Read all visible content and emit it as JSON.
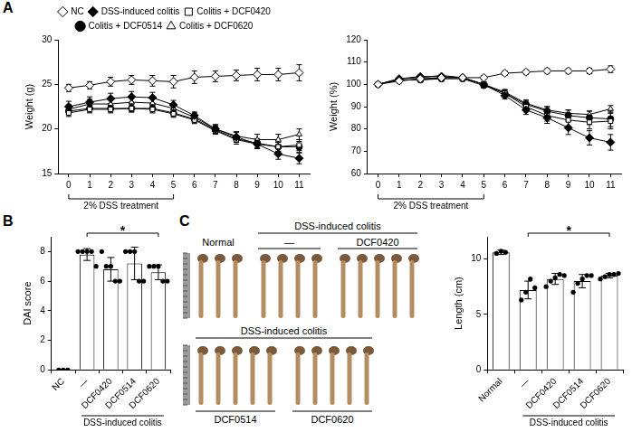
{
  "chart_data": [
    {
      "type": "line",
      "panel": "A",
      "y_label": "Weight (g)",
      "x": [
        0,
        1,
        2,
        3,
        4,
        5,
        6,
        7,
        8,
        9,
        10,
        11
      ],
      "xlim": [
        -0.5,
        11.5
      ],
      "xticks": [
        0,
        1,
        2,
        3,
        4,
        5,
        6,
        7,
        8,
        9,
        10,
        11
      ],
      "ylim": [
        15,
        30
      ],
      "yticks": [
        15,
        20,
        25,
        30
      ],
      "grid": false,
      "legend": "top",
      "annotations": [
        {
          "text": "2% DSS treatment",
          "x_range": [
            0,
            5
          ]
        }
      ],
      "series": [
        {
          "name": "NC",
          "color": "#000000",
          "marker": "diamond-open",
          "line_style": "solid",
          "values": [
            24.6,
            24.9,
            25.3,
            25.5,
            25.4,
            25.3,
            25.8,
            25.9,
            26.0,
            26.1,
            26.1,
            26.3
          ],
          "errors": [
            0.4,
            0.4,
            0.5,
            0.5,
            0.6,
            0.7,
            0.7,
            0.6,
            0.6,
            0.7,
            0.7,
            0.9
          ]
        },
        {
          "name": "DSS-induced colitis",
          "color": "#000000",
          "marker": "diamond",
          "line_style": "solid",
          "values": [
            22.5,
            23.0,
            23.4,
            23.6,
            23.5,
            22.7,
            21.5,
            20.0,
            19.1,
            18.3,
            17.2,
            16.7
          ],
          "errors": [
            0.6,
            0.6,
            0.6,
            0.6,
            0.6,
            0.5,
            0.4,
            0.4,
            0.5,
            0.5,
            0.6,
            0.6
          ]
        },
        {
          "name": "Colitis + DCF0420",
          "color": "#000000",
          "marker": "square-open",
          "line_style": "solid",
          "values": [
            21.8,
            22.2,
            22.2,
            22.3,
            22.2,
            21.7,
            21.0,
            19.8,
            18.8,
            18.3,
            18.0,
            18.2
          ],
          "errors": [
            0.4,
            0.4,
            0.4,
            0.4,
            0.4,
            0.4,
            0.4,
            0.4,
            0.5,
            0.5,
            0.5,
            0.6
          ]
        },
        {
          "name": "Colitis + DCF0514",
          "color": "#000000",
          "marker": "circle",
          "line_style": "solid",
          "values": [
            22.0,
            22.3,
            22.3,
            22.3,
            22.3,
            21.8,
            21.1,
            19.9,
            18.9,
            18.4,
            18.0,
            18.0
          ],
          "errors": [
            0.4,
            0.4,
            0.4,
            0.4,
            0.4,
            0.4,
            0.4,
            0.4,
            0.4,
            0.5,
            0.5,
            0.6
          ]
        },
        {
          "name": "Colitis + DCF0620",
          "color": "#000000",
          "marker": "triangle-open",
          "line_style": "solid",
          "values": [
            22.2,
            22.8,
            22.8,
            23.0,
            22.9,
            22.3,
            21.3,
            20.0,
            19.2,
            18.8,
            18.8,
            19.4
          ],
          "errors": [
            0.5,
            0.5,
            0.5,
            0.5,
            0.5,
            0.5,
            0.5,
            0.5,
            0.5,
            0.6,
            0.6,
            0.6
          ]
        }
      ]
    },
    {
      "type": "line",
      "y_label": "Weight (%)",
      "x": [
        0,
        1,
        2,
        3,
        4,
        5,
        6,
        7,
        8,
        9,
        10,
        11
      ],
      "xlim": [
        -0.5,
        11.5
      ],
      "xticks": [
        0,
        1,
        2,
        3,
        4,
        5,
        6,
        7,
        8,
        9,
        10,
        11
      ],
      "ylim": [
        60,
        120
      ],
      "yticks": [
        60,
        70,
        80,
        90,
        100,
        110,
        120
      ],
      "grid": false,
      "annotations": [
        {
          "text": "2% DSS treatment",
          "x_range": [
            0,
            5
          ]
        }
      ],
      "series": [
        {
          "color": "#000000",
          "marker": "diamond-open",
          "line_style": "solid",
          "values": [
            100,
            101.5,
            102.5,
            103,
            103,
            103,
            105,
            105.5,
            106,
            106,
            106,
            106.8
          ],
          "errors": [
            0,
            1,
            1,
            1,
            1,
            1,
            1,
            1,
            1,
            1,
            1.2,
            1.5
          ]
        },
        {
          "color": "#000000",
          "marker": "diamond",
          "line_style": "solid",
          "values": [
            100,
            102.5,
            103.5,
            103.5,
            103,
            100,
            95,
            88.5,
            85,
            80.5,
            76,
            74
          ],
          "errors": [
            0,
            0.5,
            0.5,
            0.5,
            0.8,
            1,
            1.5,
            2,
            2.5,
            3,
            3.2,
            3.5
          ]
        },
        {
          "color": "#000000",
          "marker": "square-open",
          "line_style": "solid",
          "values": [
            100,
            102,
            102,
            103,
            103,
            100,
            96,
            90,
            86,
            84,
            83,
            83.5
          ],
          "errors": [
            0,
            0.5,
            0.5,
            0.5,
            0.5,
            1,
            1.5,
            2,
            2.5,
            3,
            3,
            3.5
          ]
        },
        {
          "color": "#000000",
          "marker": "circle",
          "line_style": "solid",
          "values": [
            100,
            102,
            102,
            102.5,
            102.5,
            99.5,
            96,
            91,
            88,
            86,
            85,
            84.5
          ],
          "errors": [
            0,
            0.5,
            0.5,
            0.5,
            0.5,
            1,
            1.5,
            1.5,
            2,
            2.5,
            3,
            3.5
          ]
        },
        {
          "color": "#000000",
          "marker": "triangle-open",
          "line_style": "solid",
          "values": [
            100,
            102.5,
            103,
            104,
            103,
            100,
            96.5,
            91.5,
            88.5,
            87,
            86.5,
            89
          ],
          "errors": [
            0,
            0.5,
            0.5,
            0.5,
            0.5,
            1,
            1.2,
            1.5,
            1.5,
            1.5,
            1.5,
            1.5
          ]
        }
      ]
    },
    {
      "type": "bar",
      "panel": "B",
      "y_label": "DAI score",
      "categories": [
        "NC",
        "—",
        "DCF0420",
        "DCF0514",
        "DCF0620"
      ],
      "values": [
        0,
        7.8,
        6.8,
        7.2,
        6.6
      ],
      "errors": [
        0,
        0.4,
        0.8,
        1.1,
        0.5
      ],
      "points": [
        [
          0,
          0,
          0
        ],
        [
          8,
          8,
          8,
          8,
          7
        ],
        [
          8,
          7,
          7,
          6,
          6
        ],
        [
          8,
          8,
          8,
          6,
          6
        ],
        [
          7,
          7,
          7,
          6,
          6
        ]
      ],
      "color": "#ffffff",
      "ylim": [
        0,
        9
      ],
      "yticks": [
        0,
        2,
        4,
        6,
        8
      ],
      "grid": false,
      "annotations": [
        {
          "text": "*",
          "between": [
            "—",
            "DCF0620"
          ]
        },
        {
          "text": "DSS-induced colitis",
          "span": [
            "—",
            "DCF0620"
          ]
        }
      ]
    },
    {
      "type": "bar",
      "y_label": "Length (cm)",
      "categories": [
        "Normal",
        "—",
        "DCF0420",
        "DCF0514",
        "DCF0620"
      ],
      "values": [
        10.6,
        7.2,
        8.2,
        8.0,
        8.5
      ],
      "errors": [
        0.2,
        0.8,
        0.5,
        0.6,
        0.2
      ],
      "points": [
        [
          10.5,
          10.7,
          10.6
        ],
        [
          6.3,
          7.0,
          8.2,
          7.4
        ],
        [
          7.5,
          8.0,
          8.3,
          8.6,
          8.5
        ],
        [
          7.0,
          7.8,
          8.2,
          8.5,
          8.5
        ],
        [
          8.2,
          8.4,
          8.6,
          8.6,
          8.7
        ]
      ],
      "color": "#ffffff",
      "ylim": [
        0,
        12
      ],
      "yticks": [
        0,
        5,
        10
      ],
      "grid": false,
      "annotations": [
        {
          "text": "*",
          "between": [
            "—",
            "DCF0620"
          ]
        },
        {
          "text": "DSS-induced colitis",
          "span": [
            "—",
            "DCF0620"
          ]
        }
      ]
    }
  ],
  "photo": {
    "panel": "C",
    "rows": [
      {
        "header": "DSS-induced colitis",
        "groups": [
          {
            "label": "Normal",
            "count": 3,
            "header": false
          },
          {
            "label": "—",
            "count": 4,
            "header": true
          },
          {
            "label": "DCF0420",
            "count": 5,
            "header": true
          }
        ]
      },
      {
        "header": "DSS-induced colitis",
        "groups": [
          {
            "label": "DCF0514",
            "count": 5,
            "header": true
          },
          {
            "label": "DCF0620",
            "count": 5,
            "header": true
          }
        ]
      }
    ]
  }
}
